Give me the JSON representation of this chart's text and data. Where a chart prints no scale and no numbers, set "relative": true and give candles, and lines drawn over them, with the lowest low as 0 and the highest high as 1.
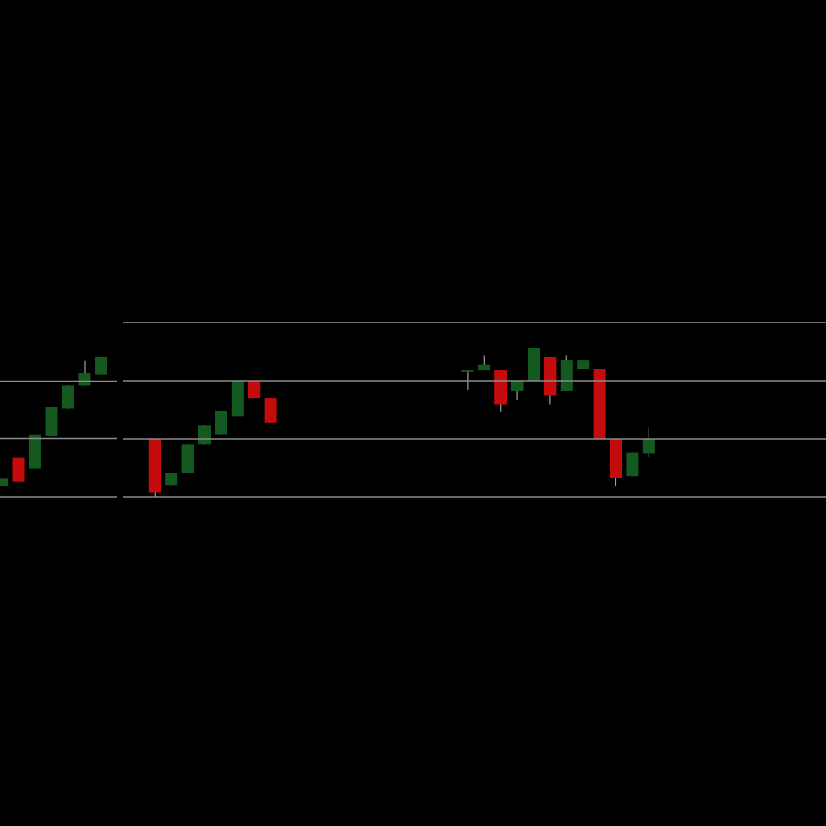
{
  "chart_data": [
    {
      "type": "candlestick",
      "relative": true,
      "tick_labels": false,
      "ref_lines": [
        {
          "axis": "y",
          "value": -0.08,
          "color": "#8c8c8c"
        },
        {
          "axis": "y",
          "value": 0.37,
          "color": "#8c8c8c"
        },
        {
          "axis": "y",
          "value": 0.81,
          "color": "#8c8c8c"
        }
      ],
      "categories": [
        null,
        null,
        null,
        null,
        null,
        null,
        null
      ],
      "ohlc": [
        [
          0,
          0.06,
          0,
          0.06
        ],
        [
          0.22,
          0.22,
          0.04,
          0.04
        ],
        [
          0.14,
          0.4,
          0.14,
          0.4
        ],
        [
          0.39,
          0.61,
          0.39,
          0.61
        ],
        [
          0.6,
          0.78,
          0.6,
          0.78
        ],
        [
          0.78,
          0.97,
          0.78,
          0.87
        ],
        [
          0.86,
          1,
          0.86,
          1
        ]
      ],
      "colors": [
        "#145a20",
        "#c40c0c",
        "#145a20",
        "#145a20",
        "#145a20",
        "#145a20",
        "#145a20"
      ]
    },
    {
      "type": "candlestick",
      "relative": true,
      "tick_labels": false,
      "ref_lines": [
        {
          "axis": "y",
          "value": 0,
          "color": "#8c8c8c"
        },
        {
          "axis": "y",
          "value": 0.39,
          "color": "#8c8c8c"
        },
        {
          "axis": "y",
          "value": 0.78,
          "color": "#8c8c8c"
        },
        {
          "axis": "y",
          "value": 1.17,
          "color": "#8c8c8c"
        }
      ],
      "categories": [
        null,
        null,
        null,
        null,
        null,
        null,
        null,
        null,
        null,
        null,
        null,
        null,
        null,
        null,
        null,
        null,
        null,
        null,
        null,
        null,
        null,
        null,
        null,
        null,
        null,
        null,
        null,
        null,
        null,
        null,
        null
      ],
      "ohlc": [
        [
          0.39,
          0.39,
          0,
          0.03
        ],
        [
          0.08,
          0.16,
          0.08,
          0.16
        ],
        [
          0.16,
          0.35,
          0.16,
          0.35
        ],
        [
          0.35,
          0.48,
          0.35,
          0.48
        ],
        [
          0.42,
          0.58,
          0.42,
          0.58
        ],
        [
          0.54,
          0.78,
          0.54,
          0.78
        ],
        [
          0.78,
          0.78,
          0.66,
          0.66
        ],
        [
          0.66,
          0.66,
          0.5,
          0.5
        ],
        null,
        null,
        null,
        null,
        null,
        null,
        null,
        null,
        null,
        null,
        null,
        [
          0.84,
          0.85,
          0.72,
          0.85
        ],
        [
          0.85,
          0.95,
          0.85,
          0.89
        ],
        [
          0.85,
          0.85,
          0.57,
          0.62
        ],
        [
          0.71,
          0.78,
          0.65,
          0.78
        ],
        [
          0.78,
          1,
          0.78,
          1
        ],
        [
          0.94,
          0.94,
          0.62,
          0.68
        ],
        [
          0.71,
          0.95,
          0.71,
          0.92
        ],
        [
          0.86,
          0.92,
          0.86,
          0.92
        ],
        [
          0.86,
          0.86,
          0.39,
          0.39
        ],
        [
          0.39,
          0.39,
          0.07,
          0.13
        ],
        [
          0.14,
          0.3,
          0.14,
          0.3
        ],
        [
          0.29,
          0.47,
          0.27,
          0.39
        ]
      ],
      "colors": [
        "#c40c0c",
        "#145a20",
        "#145a20",
        "#145a20",
        "#145a20",
        "#145a20",
        "#c40c0c",
        "#c40c0c",
        null,
        null,
        null,
        null,
        null,
        null,
        null,
        null,
        null,
        null,
        null,
        "#145a20",
        "#145a20",
        "#c40c0c",
        "#145a20",
        "#145a20",
        "#c40c0c",
        "#145a20",
        "#145a20",
        "#c40c0c",
        "#c40c0c",
        "#145a20",
        "#145a20"
      ]
    }
  ]
}
